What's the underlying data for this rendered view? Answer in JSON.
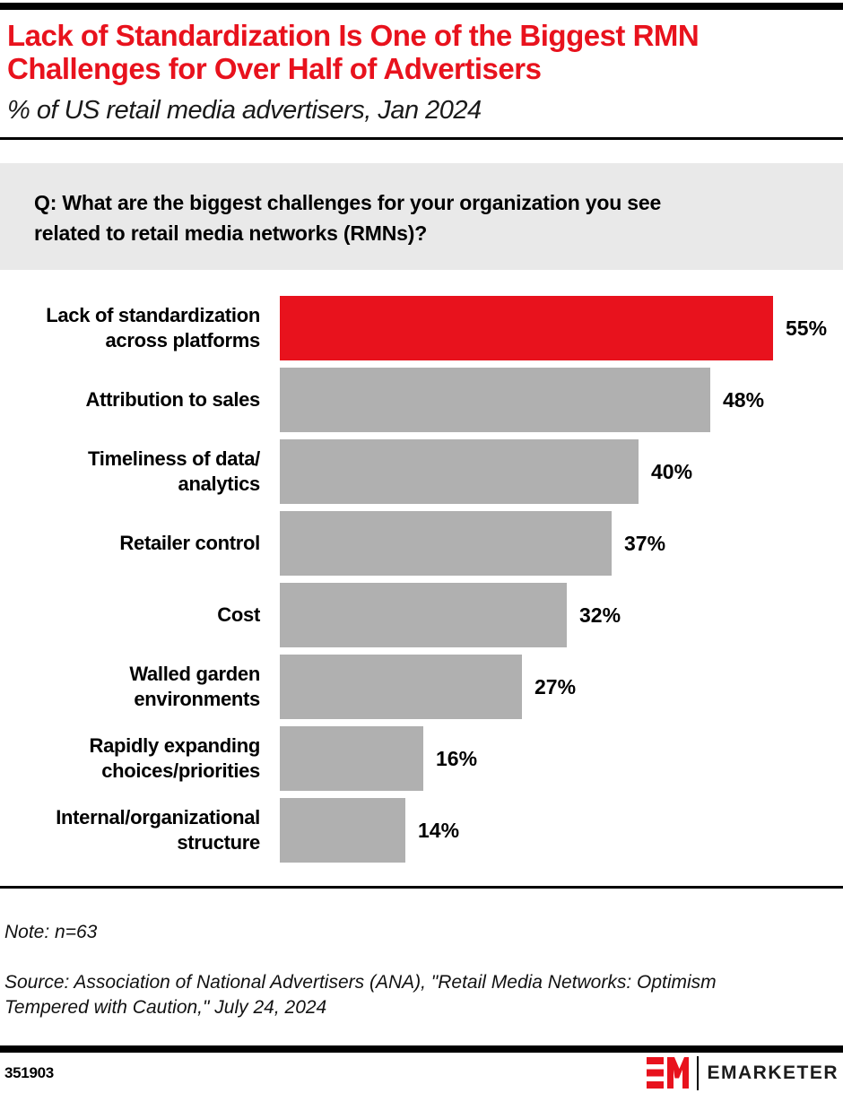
{
  "header": {
    "title_line1": "Lack of Standardization Is One of the Biggest RMN",
    "title_line2": "Challenges for Over Half of Advertisers",
    "subtitle": "% of US retail media advertisers, Jan 2024"
  },
  "question": "Q: What are the biggest challenges for your organization you see\nrelated to retail media networks (RMNs)?",
  "chart_data": {
    "type": "bar",
    "orientation": "horizontal",
    "title": "Lack of Standardization Is One of the Biggest RMN Challenges for Over Half of Advertisers",
    "subtitle": "% of US retail media advertisers, Jan 2024",
    "unit": "%",
    "xlim": [
      0,
      55
    ],
    "categories": [
      "Lack of standardization across platforms",
      "Attribution to sales",
      "Timeliness of data/analytics",
      "Retailer control",
      "Cost",
      "Walled garden environments",
      "Rapidly expanding choices/priorities",
      "Internal/organizational structure"
    ],
    "display_labels": [
      "Lack of standardization\nacross platforms",
      "Attribution to sales",
      "Timeliness of data/\nanalytics",
      "Retailer control",
      "Cost",
      "Walled garden\nenvironments",
      "Rapidly expanding\nchoices/priorities",
      "Internal/organizational\nstructure"
    ],
    "values": [
      55,
      48,
      40,
      37,
      32,
      27,
      16,
      14
    ],
    "value_labels": [
      "55%",
      "48%",
      "40%",
      "37%",
      "32%",
      "27%",
      "16%",
      "14%"
    ],
    "highlight_index": 0,
    "colors": {
      "highlight": "#e8121d",
      "default": "#b0b0b0"
    },
    "grid": false,
    "legend": "none"
  },
  "footnotes": {
    "note": "Note: n=63",
    "source": "Source: Association of National Advertisers (ANA), \"Retail Media Networks: Optimism\nTempered with Caution,\" July 24, 2024"
  },
  "footer": {
    "chart_id": "351903",
    "brand": "EMARKETER",
    "logo": "emarketer-monogram",
    "brand_red": "#e8121d"
  }
}
